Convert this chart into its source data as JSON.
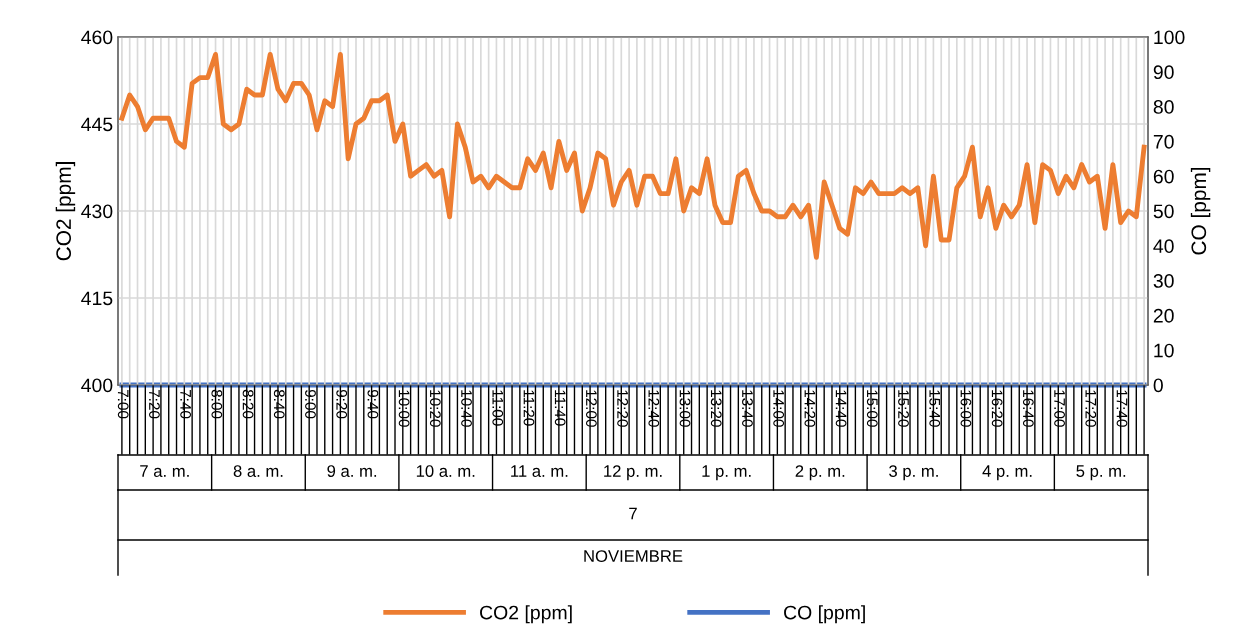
{
  "chart_data": {
    "type": "line",
    "ylabel": "CO2 [ppm]",
    "y2label": "CO [ppm]",
    "categories": [
      "7:00",
      null,
      null,
      null,
      "7:20",
      null,
      null,
      null,
      "7:40",
      null,
      null,
      null,
      "8:00",
      null,
      null,
      null,
      "8:20",
      null,
      null,
      null,
      "8:40",
      null,
      null,
      null,
      "9:00",
      null,
      null,
      null,
      "9:20",
      null,
      null,
      null,
      "9:40",
      null,
      null,
      null,
      "10:00",
      null,
      null,
      null,
      "10:20",
      null,
      null,
      null,
      "10:40",
      null,
      null,
      null,
      "11:00",
      null,
      null,
      null,
      "11:20",
      null,
      null,
      null,
      "11:40",
      null,
      null,
      null,
      "12:00",
      null,
      null,
      null,
      "12:20",
      null,
      null,
      null,
      "12:40",
      null,
      null,
      null,
      "13:00",
      null,
      null,
      null,
      "13:20",
      null,
      null,
      null,
      "13:40",
      null,
      null,
      null,
      "14:00",
      null,
      null,
      null,
      "14:20",
      null,
      null,
      null,
      "14:40",
      null,
      null,
      null,
      "15:00",
      null,
      null,
      null,
      "15:20",
      null,
      null,
      null,
      "15:40",
      null,
      null,
      null,
      "16:00",
      null,
      null,
      null,
      "16:20",
      null,
      null,
      null,
      "16:40",
      null,
      null,
      null,
      "17:00",
      null,
      null,
      null,
      "17:20",
      null,
      null,
      null,
      "17:40",
      null,
      null,
      null
    ],
    "series": [
      {
        "name": "CO2 [ppm]",
        "color": "#ed7d31",
        "values": [
          446,
          450,
          448,
          444,
          446,
          446,
          446,
          442,
          441,
          452,
          453,
          453,
          457,
          445,
          444,
          445,
          451,
          450,
          450,
          457,
          451,
          449,
          452,
          452,
          450,
          444,
          449,
          448,
          457,
          439,
          445,
          446,
          449,
          449,
          450,
          442,
          445,
          436,
          437,
          438,
          436,
          437,
          429,
          445,
          441,
          435,
          436,
          434,
          436,
          435,
          434,
          434,
          439,
          437,
          440,
          434,
          442,
          437,
          440,
          430,
          434,
          440,
          439,
          431,
          435,
          437,
          431,
          436,
          436,
          433,
          433,
          439,
          430,
          434,
          433,
          439,
          431,
          428,
          428,
          436,
          437,
          433,
          430,
          430,
          429,
          429,
          431,
          429,
          431,
          422,
          435,
          431,
          427,
          426,
          434,
          433,
          435,
          433,
          433,
          433,
          434,
          433,
          434,
          424,
          436,
          425,
          425,
          434,
          436,
          441,
          429,
          434,
          427,
          431,
          429,
          431,
          438,
          428,
          438,
          437,
          433,
          436,
          434,
          438,
          435,
          436,
          427,
          438,
          428,
          430,
          429,
          441
        ]
      },
      {
        "name": "CO [ppm]",
        "color": "#4472c4",
        "axis": "y2",
        "values": [
          0,
          0,
          0,
          0,
          0,
          0,
          0,
          0,
          0,
          0,
          0,
          0,
          0,
          0,
          0,
          0,
          0,
          0,
          0,
          0,
          0,
          0,
          0,
          0,
          0,
          0,
          0,
          0,
          0,
          0,
          0,
          0,
          0,
          0,
          0,
          0,
          0,
          0,
          0,
          0,
          0,
          0,
          0,
          0,
          0,
          0,
          0,
          0,
          0,
          0,
          0,
          0,
          0,
          0,
          0,
          0,
          0,
          0,
          0,
          0,
          0,
          0,
          0,
          0,
          0,
          0,
          0,
          0,
          0,
          0,
          0,
          0,
          0,
          0,
          0,
          0,
          0,
          0,
          0,
          0,
          0,
          0,
          0,
          0,
          0,
          0,
          0,
          0,
          0,
          0,
          0,
          0,
          0,
          0,
          0,
          0,
          0,
          0,
          0,
          0,
          0,
          0,
          0,
          0,
          0,
          0,
          0,
          0,
          0,
          0,
          0,
          0,
          0,
          0,
          0,
          0,
          0,
          0,
          0,
          0,
          0,
          0,
          0,
          0,
          0,
          0,
          0,
          0,
          0,
          0,
          0,
          0
        ]
      }
    ],
    "ylim": [
      400,
      460
    ],
    "yticks": [
      400,
      415,
      430,
      445,
      460
    ],
    "y2lim": [
      0,
      100
    ],
    "y2ticks": [
      0,
      10,
      20,
      30,
      40,
      50,
      60,
      70,
      80,
      90,
      100
    ],
    "annotations": [
      "7 a. m.",
      "8 a. m.",
      "9 a. m.",
      "10 a. m.",
      "11 a. m.",
      "12 p. m.",
      "1 p. m.",
      "2 p. m.",
      "3 p. m.",
      "4 p. m.",
      "5 p. m.",
      "7",
      "NOVIEMBRE"
    ],
    "grid": true,
    "legend": "bottom",
    "marker": "none",
    "line_style": "solid"
  }
}
